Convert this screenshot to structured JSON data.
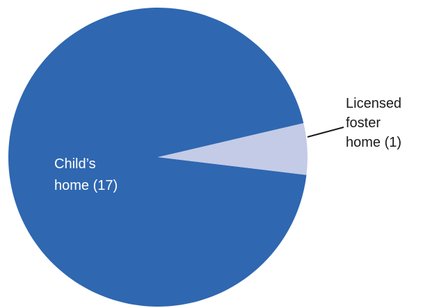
{
  "chart_data": {
    "type": "pie",
    "title": "",
    "slices": [
      {
        "label_lines": [
          "Child’s",
          "home (17)"
        ],
        "value": 17,
        "color": "#2f67b1"
      },
      {
        "label_lines": [
          "Licensed",
          "foster",
          "home (1)"
        ],
        "value": 1,
        "color": "#c3cbe6"
      }
    ],
    "legend": "none",
    "leader_line_color": "#1a1a1a"
  }
}
